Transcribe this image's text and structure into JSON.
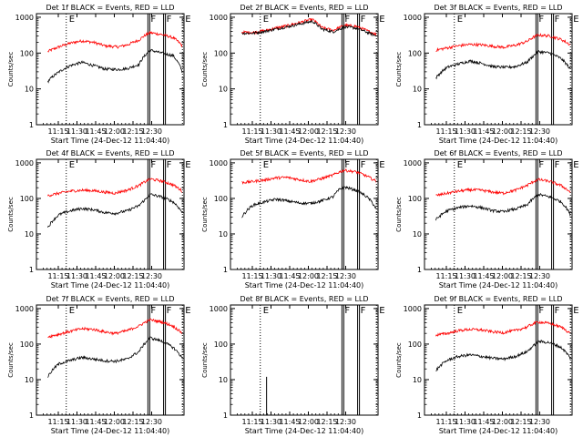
{
  "colors": {
    "events": "#000000",
    "lld": "#ff0000",
    "axis": "#000000"
  },
  "shared": {
    "xlabel": "Start Time (24-Dec-12 11:04:40)",
    "ylabel": "Counts/sec",
    "x_tick_labels": [
      "11:15",
      "11:30",
      "11:45",
      "12:00",
      "12:15",
      "12:30"
    ],
    "y_tick_labels": [
      "1",
      "10",
      "100",
      "1000"
    ]
  },
  "chart_data": [
    {
      "type": "line",
      "title": "Det 1f BLACK = Events, RED = LLD",
      "xlim_min": [
        10.5,
        43.5
      ],
      "ylim_log10": [
        0,
        3.1
      ],
      "markers": [
        {
          "t": 11,
          "label": "E"
        },
        {
          "t": 37,
          "label": "F"
        },
        {
          "t": 42,
          "label": "F"
        },
        {
          "t": 48,
          "label": "E"
        }
      ],
      "x_minutes": [
        5,
        10,
        15,
        20,
        25,
        30,
        35,
        36,
        40,
        45,
        48,
        50,
        55,
        60,
        64
      ],
      "series": [
        {
          "name": "LLD",
          "color": "#ff0000",
          "values": [
            110,
            150,
            190,
            220,
            200,
            160,
            150,
            150,
            170,
            230,
            320,
            370,
            330,
            270,
            160
          ]
        },
        {
          "name": "Events",
          "color": "#000000",
          "values": [
            16,
            30,
            45,
            55,
            45,
            36,
            35,
            35,
            37,
            48,
            90,
            120,
            100,
            85,
            30
          ]
        }
      ]
    },
    {
      "type": "line",
      "title": "Det 2f BLACK = Events, RED = LLD",
      "xlim_min": [
        10.5,
        43.5
      ],
      "ylim_log10": [
        0,
        3.1
      ],
      "markers": [
        {
          "t": 11,
          "label": "E"
        },
        {
          "t": 37,
          "label": "F"
        },
        {
          "t": 42,
          "label": "F"
        },
        {
          "t": 48,
          "label": "E"
        }
      ],
      "x_minutes": [
        5,
        10,
        15,
        20,
        25,
        30,
        35,
        36,
        40,
        45,
        48,
        50,
        55,
        60,
        64
      ],
      "series": [
        {
          "name": "LLD",
          "color": "#ff0000",
          "values": [
            380,
            380,
            420,
            500,
            580,
            700,
            850,
            870,
            520,
            430,
            520,
            600,
            560,
            420,
            330
          ]
        },
        {
          "name": "Events",
          "color": "#000000",
          "values": [
            360,
            360,
            400,
            470,
            540,
            640,
            750,
            770,
            470,
            390,
            470,
            540,
            500,
            380,
            300
          ]
        }
      ]
    },
    {
      "type": "line",
      "title": "Det 3f BLACK = Events, RED = LLD",
      "xlim_min": [
        10.5,
        43.5
      ],
      "ylim_log10": [
        0,
        3.1
      ],
      "markers": [
        {
          "t": 11,
          "label": "E"
        },
        {
          "t": 37,
          "label": "F"
        },
        {
          "t": 42,
          "label": "F"
        },
        {
          "t": 48,
          "label": "E"
        }
      ],
      "x_minutes": [
        5,
        10,
        15,
        20,
        25,
        30,
        35,
        36,
        40,
        45,
        48,
        50,
        55,
        60,
        64
      ],
      "series": [
        {
          "name": "LLD",
          "color": "#ff0000",
          "values": [
            120,
            140,
            160,
            175,
            170,
            155,
            145,
            150,
            165,
            210,
            280,
            320,
            300,
            240,
            170
          ]
        },
        {
          "name": "Events",
          "color": "#000000",
          "values": [
            20,
            40,
            50,
            60,
            52,
            42,
            40,
            40,
            42,
            55,
            85,
            110,
            100,
            70,
            35
          ]
        }
      ]
    },
    {
      "type": "line",
      "title": "Det 4f BLACK = Events, RED = LLD",
      "xlim_min": [
        10.5,
        43.5
      ],
      "ylim_log10": [
        0,
        3.1
      ],
      "markers": [
        {
          "t": 11,
          "label": "E"
        },
        {
          "t": 37,
          "label": "F"
        },
        {
          "t": 42,
          "label": "F"
        },
        {
          "t": 48,
          "label": "E"
        }
      ],
      "x_minutes": [
        5,
        10,
        15,
        20,
        25,
        30,
        35,
        36,
        40,
        45,
        48,
        50,
        55,
        60,
        64
      ],
      "series": [
        {
          "name": "LLD",
          "color": "#ff0000",
          "values": [
            120,
            140,
            160,
            170,
            165,
            150,
            140,
            150,
            170,
            230,
            300,
            350,
            310,
            240,
            160
          ]
        },
        {
          "name": "Events",
          "color": "#000000",
          "values": [
            15,
            35,
            45,
            52,
            48,
            40,
            38,
            40,
            45,
            62,
            95,
            130,
            110,
            80,
            40
          ]
        }
      ]
    },
    {
      "type": "line",
      "title": "Det 5f BLACK = Events, RED = LLD",
      "xlim_min": [
        10.5,
        43.5
      ],
      "ylim_log10": [
        0,
        3.1
      ],
      "markers": [
        {
          "t": 11,
          "label": "E"
        },
        {
          "t": 37,
          "label": "F"
        },
        {
          "t": 42,
          "label": "F"
        },
        {
          "t": 48,
          "label": "E"
        }
      ],
      "x_minutes": [
        5,
        10,
        15,
        20,
        25,
        30,
        35,
        36,
        40,
        45,
        48,
        50,
        55,
        60,
        64
      ],
      "series": [
        {
          "name": "LLD",
          "color": "#ff0000",
          "values": [
            280,
            300,
            330,
            380,
            390,
            340,
            300,
            310,
            360,
            450,
            560,
            620,
            560,
            420,
            300
          ]
        },
        {
          "name": "Events",
          "color": "#000000",
          "values": [
            30,
            65,
            80,
            95,
            85,
            75,
            72,
            75,
            85,
            110,
            180,
            210,
            170,
            110,
            50
          ]
        }
      ]
    },
    {
      "type": "line",
      "title": "Det 6f BLACK = Events, RED = LLD",
      "xlim_min": [
        10.5,
        43.5
      ],
      "ylim_log10": [
        0,
        3.1
      ],
      "markers": [
        {
          "t": 11,
          "label": "E"
        },
        {
          "t": 37,
          "label": "F"
        },
        {
          "t": 42,
          "label": "F"
        },
        {
          "t": 48,
          "label": "E"
        }
      ],
      "x_minutes": [
        5,
        10,
        15,
        20,
        25,
        30,
        35,
        36,
        40,
        45,
        48,
        50,
        55,
        60,
        64
      ],
      "series": [
        {
          "name": "LLD",
          "color": "#ff0000",
          "values": [
            120,
            140,
            160,
            175,
            170,
            150,
            140,
            150,
            170,
            230,
            300,
            340,
            300,
            230,
            150
          ]
        },
        {
          "name": "Events",
          "color": "#000000",
          "values": [
            25,
            45,
            55,
            62,
            55,
            45,
            42,
            45,
            50,
            65,
            100,
            130,
            110,
            80,
            35
          ]
        }
      ]
    },
    {
      "type": "line",
      "title": "Det 7f BLACK = Events, RED = LLD",
      "xlim_min": [
        10.5,
        43.5
      ],
      "ylim_log10": [
        0,
        3.1
      ],
      "markers": [
        {
          "t": 11,
          "label": "E"
        },
        {
          "t": 37,
          "label": "F"
        },
        {
          "t": 42,
          "label": "F"
        },
        {
          "t": 48,
          "label": "E"
        }
      ],
      "x_minutes": [
        5,
        10,
        15,
        20,
        25,
        30,
        35,
        36,
        40,
        45,
        48,
        50,
        55,
        60,
        64
      ],
      "series": [
        {
          "name": "LLD",
          "color": "#ff0000",
          "values": [
            160,
            190,
            230,
            270,
            260,
            220,
            200,
            210,
            240,
            320,
            420,
            480,
            420,
            320,
            200
          ]
        },
        {
          "name": "Events",
          "color": "#000000",
          "values": [
            12,
            28,
            35,
            42,
            38,
            34,
            33,
            34,
            38,
            60,
            110,
            150,
            120,
            80,
            40
          ]
        }
      ]
    },
    {
      "type": "line",
      "title": "Det 8f BLACK = Events, RED = LLD",
      "xlim_min": [
        10.5,
        43.5
      ],
      "ylim_log10": [
        0,
        3.1
      ],
      "markers": [
        {
          "t": 11,
          "label": "E"
        },
        {
          "t": 37,
          "label": "F"
        },
        {
          "t": 42,
          "label": "F"
        },
        {
          "t": 48,
          "label": "E"
        }
      ],
      "x_minutes": [],
      "series": [
        {
          "name": "LLD",
          "color": "#ff0000",
          "values": []
        },
        {
          "name": "Events",
          "color": "#000000",
          "values": []
        }
      ],
      "spike": {
        "t": 12,
        "y_from": 1.0,
        "y_to": 12
      }
    },
    {
      "type": "line",
      "title": "Det 9f BLACK = Events, RED = LLD",
      "xlim_min": [
        10.5,
        43.5
      ],
      "ylim_log10": [
        0,
        3.1
      ],
      "markers": [
        {
          "t": 11,
          "label": "E"
        },
        {
          "t": 37,
          "label": "F"
        },
        {
          "t": 42,
          "label": "F"
        },
        {
          "t": 48,
          "label": "E"
        }
      ],
      "x_minutes": [
        5,
        10,
        15,
        20,
        25,
        30,
        35,
        36,
        40,
        45,
        48,
        50,
        55,
        60,
        64
      ],
      "series": [
        {
          "name": "LLD",
          "color": "#ff0000",
          "values": [
            180,
            200,
            240,
            260,
            250,
            220,
            210,
            220,
            240,
            300,
            380,
            420,
            380,
            300,
            200
          ]
        },
        {
          "name": "Events",
          "color": "#000000",
          "values": [
            18,
            35,
            45,
            50,
            45,
            40,
            38,
            40,
            45,
            60,
            90,
            120,
            110,
            80,
            40
          ]
        }
      ]
    }
  ]
}
